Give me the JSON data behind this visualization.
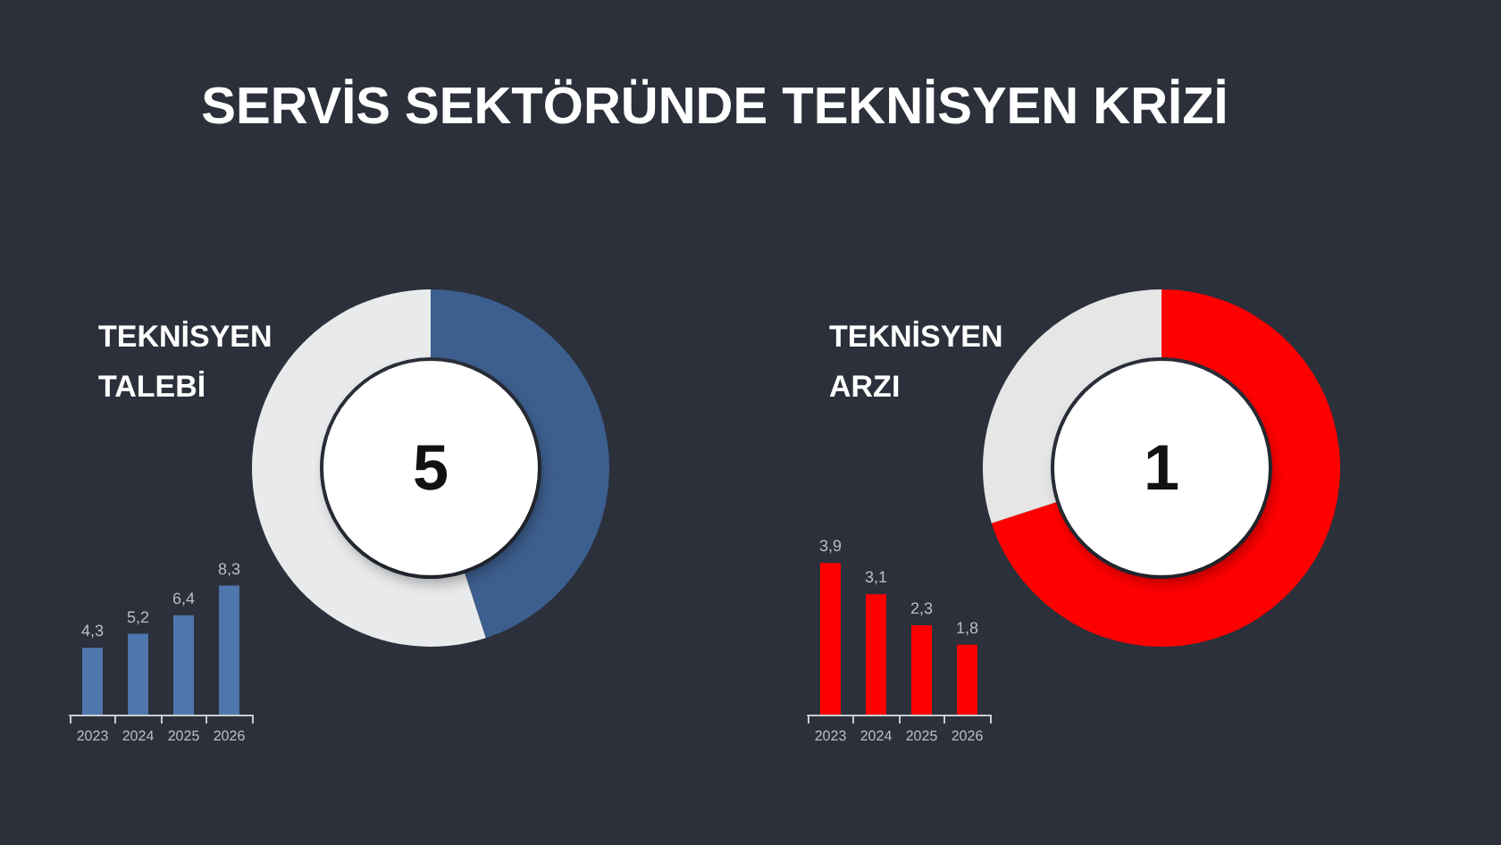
{
  "chart_data": [
    {
      "type": "donut",
      "title": "SERVİS SEKTÖRÜNDE TEKNİSYEN KRİZİ",
      "subtitle": "TEKNİSYEN TALEBİ",
      "categories": [
        null,
        null
      ],
      "values": [
        45,
        55
      ],
      "colors": [
        "#3d5f8f",
        "#e9eaec"
      ],
      "annotations": [
        "5"
      ]
    },
    {
      "type": "bar",
      "categories": [
        "2023",
        "2024",
        "2025",
        "2026"
      ],
      "values": [
        4.3,
        5.2,
        6.4,
        8.3
      ],
      "value_labels": [
        "4,3",
        "5,2",
        "6,4",
        "8,3"
      ],
      "color": "#4f77ad",
      "tick_labels": "x"
    },
    {
      "type": "donut",
      "subtitle": "TEKNİSYEN ARZI",
      "categories": [
        null,
        null
      ],
      "values": [
        70,
        30
      ],
      "colors": [
        "#ff0000",
        "#e6e6e6"
      ],
      "annotations": [
        "1"
      ]
    },
    {
      "type": "bar",
      "categories": [
        "2023",
        "2024",
        "2025",
        "2026"
      ],
      "values": [
        3.9,
        3.1,
        2.3,
        1.8
      ],
      "value_labels": [
        "3,9",
        "3,1",
        "2,3",
        "1,8"
      ],
      "color": "#ff0000",
      "tick_labels": "x"
    }
  ]
}
